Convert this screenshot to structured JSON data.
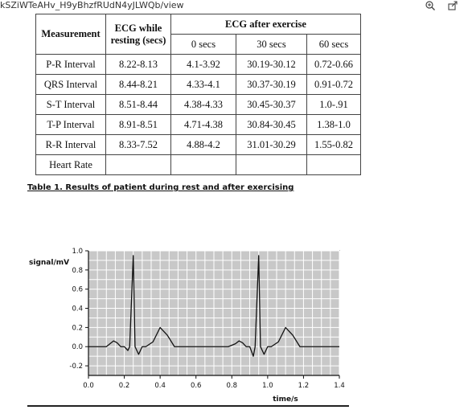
{
  "browser": {
    "url_text": "kSZiWTeAHv_H9yBhzfRUdN4yJLWQb/view",
    "icons": [
      "zoom-in-icon",
      "share-icon"
    ]
  },
  "table": {
    "headers": {
      "measurement": "Measurement",
      "resting": "ECG while resting (secs)",
      "after": "ECG after exercise",
      "sub": [
        "0 secs",
        "30 secs",
        "60 secs"
      ]
    },
    "rows": [
      {
        "label": "P-R Interval",
        "rest": "8.22-8.13",
        "s0": "4.1-3.92",
        "s30": "30.19-30.12",
        "s60": "0.72-0.66"
      },
      {
        "label": "QRS Interval",
        "rest": "8.44-8.21",
        "s0": "4.33-4.1",
        "s30": "30.37-30.19",
        "s60": "0.91-0.72"
      },
      {
        "label": "S-T Interval",
        "rest": "8.51-8.44",
        "s0": "4.38-4.33",
        "s30": "30.45-30.37",
        "s60": "1.0-.91"
      },
      {
        "label": "T-P Interval",
        "rest": "8.91-8.51",
        "s0": "4.71-4.38",
        "s30": "30.84-30.45",
        "s60": "1.38-1.0"
      },
      {
        "label": "R-R Interval",
        "rest": "8.33-7.52",
        "s0": "4.88-4.2",
        "s30": "31.01-30.29",
        "s60": "1.55-0.82"
      },
      {
        "label": "Heart Rate",
        "rest": "",
        "s0": "",
        "s30": "",
        "s60": ""
      }
    ]
  },
  "caption": "Table 1. Results of patient during rest and after exercising",
  "chart_data": {
    "type": "line",
    "title": "",
    "xlabel": "time/s",
    "ylabel": "signal/mV",
    "xlim": [
      0.0,
      1.4
    ],
    "ylim": [
      -0.3,
      1.0
    ],
    "x_ticks": [
      "0.0",
      "0.2",
      "0.4",
      "0.6",
      "0.8",
      "1.0",
      "1.2",
      "1.4"
    ],
    "y_ticks": [
      "1.0",
      "0.8",
      "0.6",
      "0.4",
      "0.2",
      "0.0",
      "-0.2"
    ],
    "grid": true,
    "background": "#c8c8c8",
    "series": [
      {
        "x": [
          0.0,
          0.1,
          0.12,
          0.14,
          0.16,
          0.18,
          0.2,
          0.22,
          0.23,
          0.25,
          0.26,
          0.28,
          0.3,
          0.32,
          0.36,
          0.4,
          0.44,
          0.48,
          0.5,
          0.6,
          0.7,
          0.78,
          0.82,
          0.84,
          0.86,
          0.88,
          0.9,
          0.92,
          0.93,
          0.95,
          0.96,
          0.98,
          1.0,
          1.02,
          1.06,
          1.1,
          1.14,
          1.18,
          1.2,
          1.4
        ],
        "y": [
          0.0,
          0.0,
          0.03,
          0.06,
          0.04,
          0.0,
          0.0,
          -0.04,
          0.0,
          0.95,
          0.0,
          -0.08,
          0.0,
          0.0,
          0.05,
          0.2,
          0.12,
          0.0,
          0.0,
          0.0,
          0.0,
          0.0,
          0.03,
          0.06,
          0.04,
          0.0,
          0.0,
          -0.1,
          0.0,
          0.95,
          0.0,
          -0.08,
          0.0,
          0.0,
          0.05,
          0.2,
          0.12,
          0.0,
          0.0,
          0.0
        ]
      }
    ]
  }
}
